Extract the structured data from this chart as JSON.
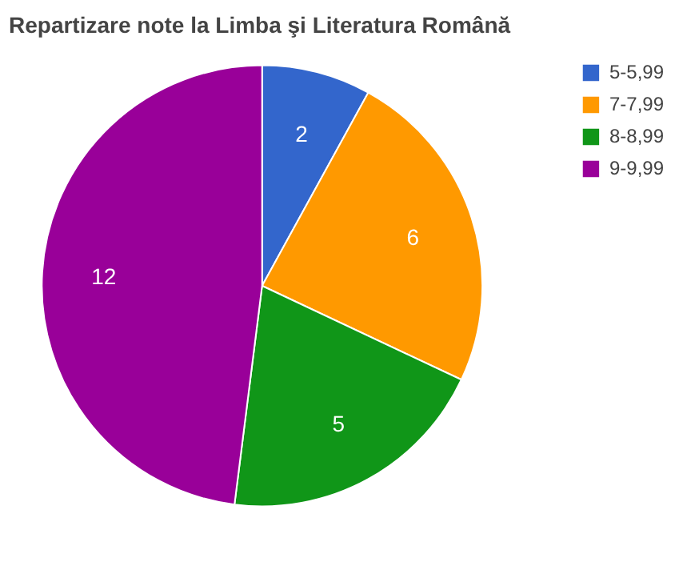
{
  "chart_data": {
    "type": "pie",
    "title": "Repartizare note la Limba şi Literatura Română",
    "categories": [
      "5-5,99",
      "7-7,99",
      "8-8,99",
      "9-9,99"
    ],
    "values": [
      2,
      6,
      5,
      12
    ],
    "colors": [
      "#3366cc",
      "#ff9900",
      "#109618",
      "#990099"
    ],
    "data_labels": true,
    "legend": "top right"
  }
}
